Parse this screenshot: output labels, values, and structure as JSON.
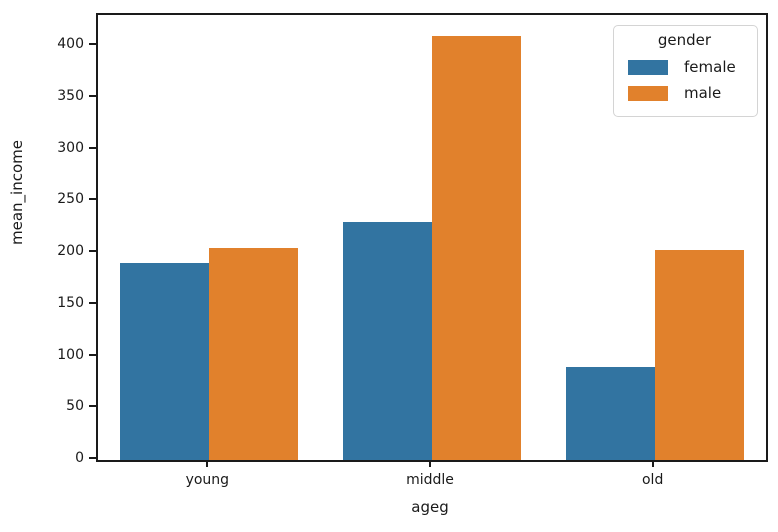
{
  "chart_data": {
    "type": "bar",
    "title": "",
    "xlabel": "ageg",
    "ylabel": "mean_income",
    "categories": [
      "young",
      "middle",
      "old"
    ],
    "series": [
      {
        "name": "female",
        "color": "#3274a1",
        "values": [
          190,
          230,
          90
        ]
      },
      {
        "name": "male",
        "color": "#e1812c",
        "values": [
          205,
          410,
          203
        ]
      }
    ],
    "ylim": [
      0,
      430
    ],
    "yticks": [
      0,
      50,
      100,
      150,
      200,
      250,
      300,
      350,
      400
    ],
    "grid": false,
    "legend": {
      "title": "gender",
      "position": "upper right"
    },
    "colors": {
      "axis": "#1a1a1a",
      "background": "#ffffff",
      "legend_border": "#d4d4d4"
    }
  }
}
